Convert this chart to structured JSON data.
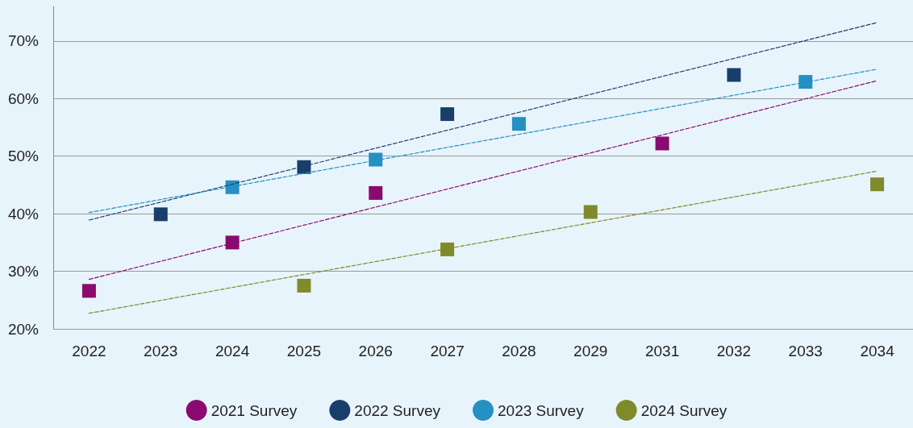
{
  "chart_data": {
    "type": "scatter",
    "categories": [
      "2022",
      "2023",
      "2024",
      "2025",
      "2026",
      "2027",
      "2028",
      "2029",
      "2031",
      "2032",
      "2033",
      "2034"
    ],
    "series": [
      {
        "name": "2021 Survey",
        "color": "#8b0a6f",
        "values": [
          26.6,
          null,
          35.0,
          null,
          43.6,
          null,
          null,
          null,
          52.2,
          null,
          null,
          null
        ]
      },
      {
        "name": "2022 Survey",
        "color": "#1a3e6b",
        "values": [
          null,
          39.9,
          null,
          48.1,
          null,
          57.3,
          null,
          null,
          null,
          64.1,
          null,
          null
        ]
      },
      {
        "name": "2023 Survey",
        "color": "#2490c4",
        "values": [
          null,
          null,
          44.6,
          null,
          49.4,
          null,
          55.6,
          null,
          null,
          null,
          62.9,
          null
        ]
      },
      {
        "name": "2024 Survey",
        "color": "#7f8a2a",
        "values": [
          null,
          null,
          null,
          27.5,
          null,
          33.8,
          null,
          40.3,
          null,
          null,
          null,
          45.1
        ]
      },
      {
        "type": "line",
        "color": "#8b0a6f",
        "values": [
          28.6,
          null,
          null,
          null,
          null,
          null,
          null,
          null,
          null,
          null,
          null,
          63.1
        ],
        "line_style": "dashed",
        "marker": "none"
      },
      {
        "type": "line",
        "color": "#1a3e6b",
        "values": [
          38.9,
          null,
          null,
          null,
          null,
          null,
          null,
          null,
          null,
          null,
          null,
          73.2
        ],
        "line_style": "dashed",
        "marker": "none"
      },
      {
        "type": "line",
        "color": "#2490c4",
        "values": [
          40.2,
          null,
          null,
          null,
          null,
          null,
          null,
          null,
          null,
          null,
          null,
          65.1
        ],
        "line_style": "dashed",
        "marker": "none"
      },
      {
        "type": "line",
        "color": "#7f8a2a",
        "values": [
          22.7,
          null,
          null,
          null,
          null,
          null,
          null,
          null,
          null,
          null,
          null,
          47.4
        ],
        "line_style": "dashed",
        "marker": "none"
      }
    ],
    "ylim": [
      20,
      76
    ],
    "yticks": [
      {
        "value": 20,
        "label": "20%"
      },
      {
        "value": 30,
        "label": "30%"
      },
      {
        "value": 40,
        "label": "40%"
      },
      {
        "value": 50,
        "label": "50%"
      },
      {
        "value": 60,
        "label": "60%"
      },
      {
        "value": 70,
        "label": "70%"
      }
    ],
    "grid": "y",
    "legend": "bottom",
    "marker": "square"
  }
}
